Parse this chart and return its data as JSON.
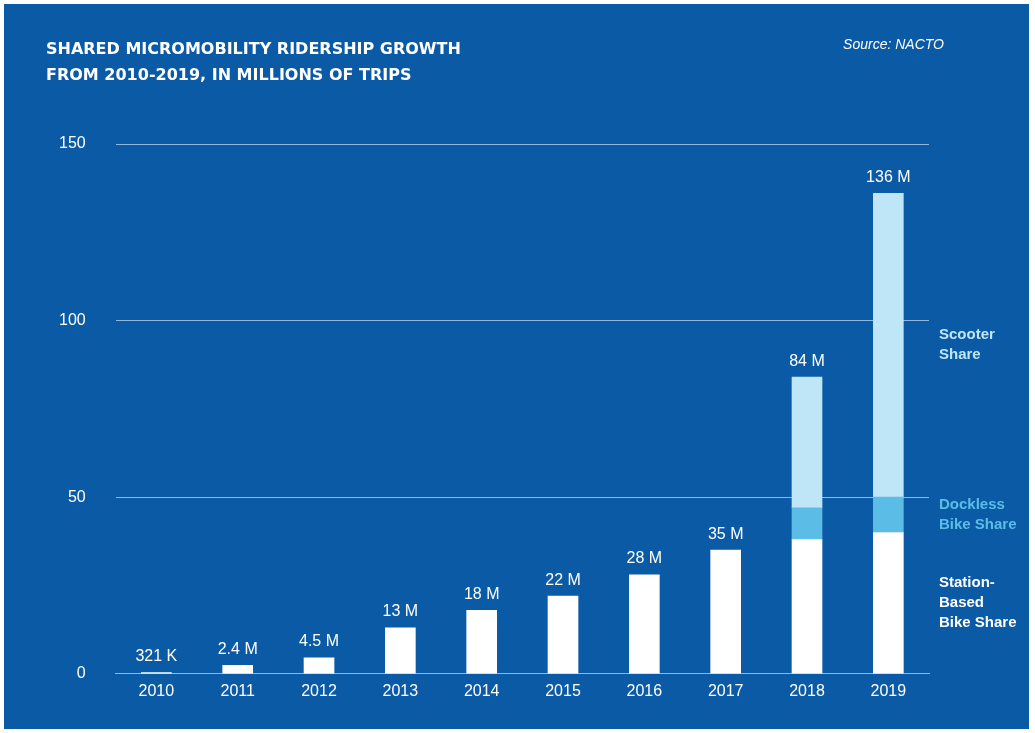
{
  "chart_data": {
    "type": "bar",
    "title": "SHARED MICROMOBILITY RIDERSHIP GROWTH FROM 2010-2019, IN MILLIONS OF TRIPS",
    "annotations": [
      "Source: NACTO"
    ],
    "categories": [
      "2010",
      "2011",
      "2012",
      "2013",
      "2014",
      "2015",
      "2016",
      "2017",
      "2018",
      "2019"
    ],
    "stacked": true,
    "series": [
      {
        "name": "Station-Based Bike Share",
        "color": "#ffffff",
        "values": [
          0.321,
          2.4,
          4.5,
          13,
          18,
          22,
          28,
          35,
          38,
          40
        ]
      },
      {
        "name": "Dockless Bike Share",
        "color": "#5bbde6",
        "values": [
          null,
          null,
          null,
          null,
          null,
          null,
          null,
          null,
          9,
          10
        ]
      },
      {
        "name": "Scooter Share",
        "color": "#bfe6f7",
        "values": [
          null,
          null,
          null,
          null,
          null,
          null,
          null,
          null,
          37,
          86
        ]
      }
    ],
    "totals": [
      "321 K",
      "2.4 M",
      "4.5 M",
      "13 M",
      "18 M",
      "22 M",
      "28 M",
      "35 M",
      "84 M",
      "136 M"
    ],
    "ylim": [
      0,
      150
    ],
    "yticks": [
      0,
      50,
      100,
      150
    ],
    "grid": "y",
    "legend": "right"
  }
}
